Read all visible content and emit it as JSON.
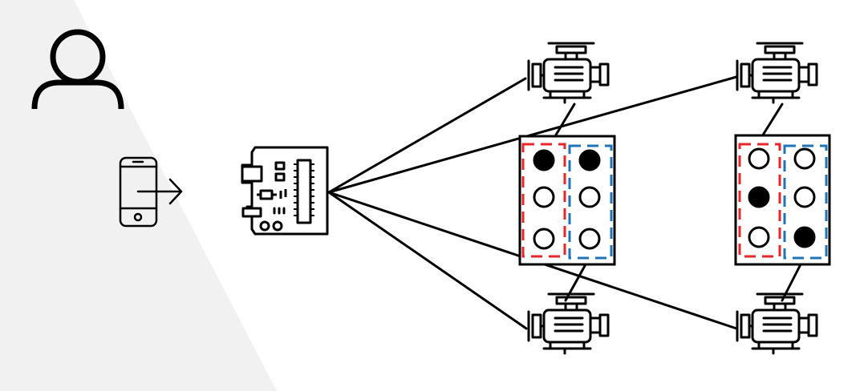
{
  "diagram": {
    "background_color": "#f1f1f1",
    "line_color": "#000000",
    "left_group_color": "#e5262a",
    "right_group_color": "#1f73b7",
    "nodes": {
      "user": {
        "icon": "user-icon"
      },
      "phone": {
        "icon": "smartphone-send-icon"
      },
      "controller": {
        "icon": "microcontroller-board-icon"
      },
      "motors": [
        {
          "icon": "motor-icon"
        },
        {
          "icon": "motor-icon"
        },
        {
          "icon": "motor-icon"
        },
        {
          "icon": "motor-icon"
        }
      ]
    },
    "cells": [
      {
        "dots": [
          true,
          true,
          false,
          false,
          false,
          false
        ]
      },
      {
        "dots": [
          false,
          false,
          true,
          false,
          false,
          true
        ]
      }
    ]
  }
}
